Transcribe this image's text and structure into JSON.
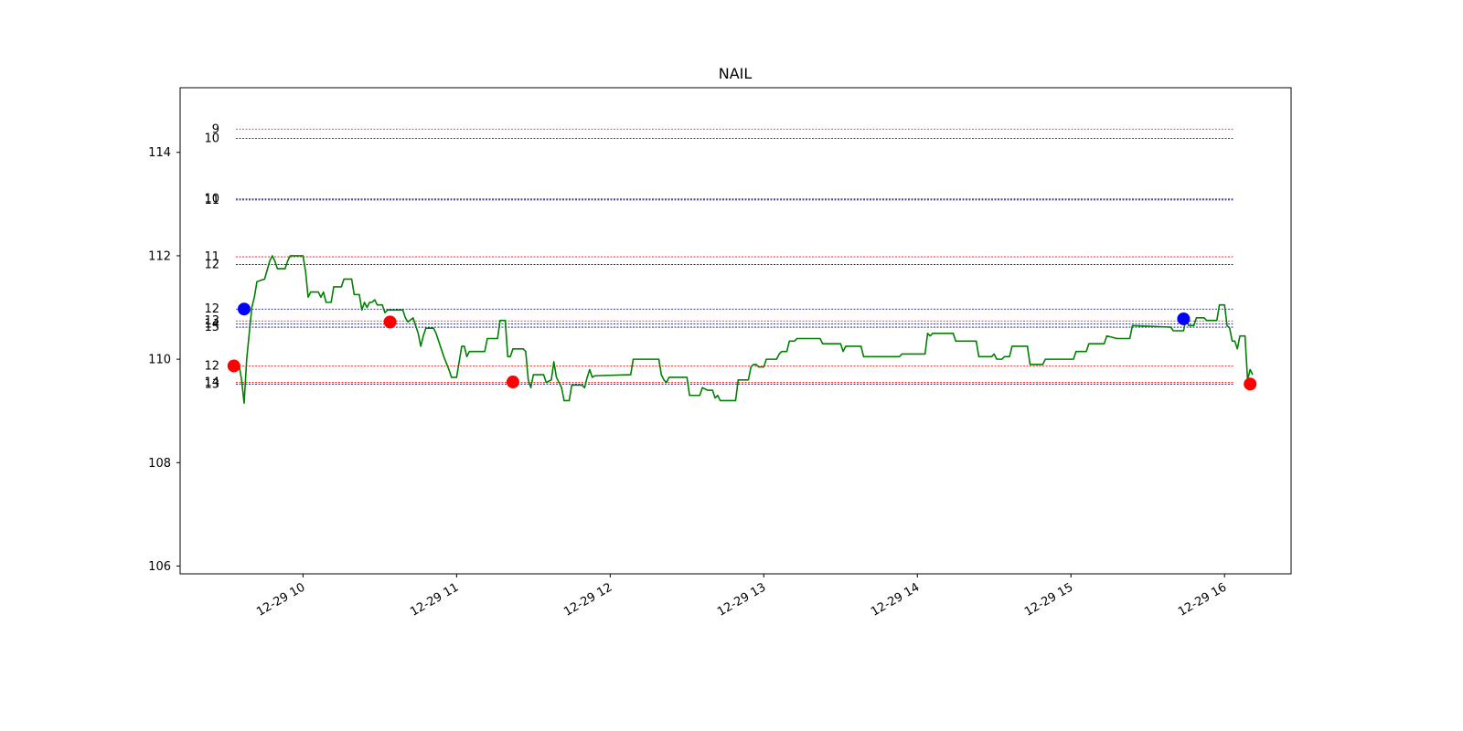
{
  "chart_data": {
    "type": "line",
    "title": "NAIL",
    "xlabel": "",
    "ylabel": "",
    "x_axis": {
      "type": "time",
      "date": "2024-12-29",
      "range": [
        "09:12",
        "16:26"
      ],
      "ticks": [
        {
          "time": "10:00",
          "label": "12-29 10"
        },
        {
          "time": "11:00",
          "label": "12-29 11"
        },
        {
          "time": "12:00",
          "label": "12-29 12"
        },
        {
          "time": "13:00",
          "label": "12-29 13"
        },
        {
          "time": "14:00",
          "label": "12-29 14"
        },
        {
          "time": "15:00",
          "label": "12-29 15"
        },
        {
          "time": "16:00",
          "label": "12-29 16"
        }
      ]
    },
    "y_axis": {
      "range": [
        105.85,
        115.25
      ],
      "ticks": [
        106,
        108,
        110,
        112,
        114
      ]
    },
    "grid": false,
    "series": [
      {
        "color": "#008000",
        "points": [
          [
            "09:35",
            109.9
          ],
          [
            "09:36",
            109.6
          ],
          [
            "09:37",
            109.15
          ],
          [
            "09:38",
            110.0
          ],
          [
            "09:40",
            111.0
          ],
          [
            "09:41",
            111.2
          ],
          [
            "09:42",
            111.5
          ],
          [
            "09:45",
            111.55
          ],
          [
            "09:47",
            111.9
          ],
          [
            "09:48",
            112.0
          ],
          [
            "09:49",
            111.9
          ],
          [
            "09:50",
            111.75
          ],
          [
            "09:53",
            111.75
          ],
          [
            "09:54",
            111.9
          ],
          [
            "09:55",
            112.0
          ],
          [
            "10:00",
            112.0
          ],
          [
            "10:01",
            111.7
          ],
          [
            "10:02",
            111.2
          ],
          [
            "10:03",
            111.3
          ],
          [
            "10:06",
            111.3
          ],
          [
            "10:07",
            111.2
          ],
          [
            "10:08",
            111.3
          ],
          [
            "10:09",
            111.1
          ],
          [
            "10:11",
            111.1
          ],
          [
            "10:12",
            111.4
          ],
          [
            "10:15",
            111.4
          ],
          [
            "10:16",
            111.55
          ],
          [
            "10:19",
            111.55
          ],
          [
            "10:20",
            111.25
          ],
          [
            "10:22",
            111.25
          ],
          [
            "10:23",
            110.95
          ],
          [
            "10:24",
            111.1
          ],
          [
            "10:25",
            111.0
          ],
          [
            "10:26",
            111.1
          ],
          [
            "10:27",
            111.1
          ],
          [
            "10:28",
            111.15
          ],
          [
            "10:29",
            111.05
          ],
          [
            "10:31",
            111.05
          ],
          [
            "10:32",
            110.9
          ],
          [
            "10:33",
            110.95
          ],
          [
            "10:35",
            110.95
          ],
          [
            "10:39",
            110.95
          ],
          [
            "10:40",
            110.8
          ],
          [
            "10:41",
            110.72
          ],
          [
            "10:43",
            110.8
          ],
          [
            "10:44",
            110.65
          ],
          [
            "10:45",
            110.5
          ],
          [
            "10:46",
            110.25
          ],
          [
            "10:47",
            110.45
          ],
          [
            "10:48",
            110.6
          ],
          [
            "10:51",
            110.6
          ],
          [
            "10:52",
            110.5
          ],
          [
            "10:53",
            110.35
          ],
          [
            "10:54",
            110.2
          ],
          [
            "10:55",
            110.05
          ],
          [
            "10:57",
            109.8
          ],
          [
            "10:58",
            109.65
          ],
          [
            "11:00",
            109.65
          ],
          [
            "11:01",
            109.95
          ],
          [
            "11:02",
            110.25
          ],
          [
            "11:03",
            110.25
          ],
          [
            "11:04",
            110.05
          ],
          [
            "11:05",
            110.15
          ],
          [
            "11:11",
            110.15
          ],
          [
            "11:12",
            110.4
          ],
          [
            "11:16",
            110.4
          ],
          [
            "11:17",
            110.75
          ],
          [
            "11:19",
            110.75
          ],
          [
            "11:20",
            110.05
          ],
          [
            "11:21",
            110.05
          ],
          [
            "11:22",
            110.2
          ],
          [
            "11:26",
            110.2
          ],
          [
            "11:27",
            110.15
          ],
          [
            "11:28",
            109.6
          ],
          [
            "11:29",
            109.45
          ],
          [
            "11:30",
            109.7
          ],
          [
            "11:34",
            109.7
          ],
          [
            "11:35",
            109.55
          ],
          [
            "11:37",
            109.6
          ],
          [
            "11:38",
            109.95
          ],
          [
            "11:39",
            109.65
          ],
          [
            "11:40",
            109.55
          ],
          [
            "11:41",
            109.45
          ],
          [
            "11:42",
            109.2
          ],
          [
            "11:44",
            109.2
          ],
          [
            "11:45",
            109.5
          ],
          [
            "11:49",
            109.5
          ],
          [
            "11:50",
            109.45
          ],
          [
            "11:51",
            109.65
          ],
          [
            "11:52",
            109.8
          ],
          [
            "11:53",
            109.65
          ],
          [
            "11:54",
            109.68
          ],
          [
            "12:08",
            109.7
          ],
          [
            "12:09",
            110.0
          ],
          [
            "12:19",
            110.0
          ],
          [
            "12:20",
            109.7
          ],
          [
            "12:21",
            109.6
          ],
          [
            "12:22",
            109.55
          ],
          [
            "12:23",
            109.65
          ],
          [
            "12:30",
            109.65
          ],
          [
            "12:31",
            109.3
          ],
          [
            "12:35",
            109.3
          ],
          [
            "12:36",
            109.45
          ],
          [
            "12:38",
            109.4
          ],
          [
            "12:40",
            109.4
          ],
          [
            "12:41",
            109.25
          ],
          [
            "12:42",
            109.3
          ],
          [
            "12:43",
            109.2
          ],
          [
            "12:49",
            109.2
          ],
          [
            "12:50",
            109.6
          ],
          [
            "12:54",
            109.6
          ],
          [
            "12:55",
            109.85
          ],
          [
            "12:56",
            109.9
          ],
          [
            "12:57",
            109.9
          ],
          [
            "12:58",
            109.85
          ],
          [
            "13:00",
            109.85
          ],
          [
            "13:01",
            110.0
          ],
          [
            "13:05",
            110.0
          ],
          [
            "13:06",
            110.1
          ],
          [
            "13:07",
            110.15
          ],
          [
            "13:09",
            110.15
          ],
          [
            "13:10",
            110.35
          ],
          [
            "13:12",
            110.35
          ],
          [
            "13:13",
            110.4
          ],
          [
            "13:15",
            110.4
          ],
          [
            "13:22",
            110.4
          ],
          [
            "13:23",
            110.3
          ],
          [
            "13:30",
            110.3
          ],
          [
            "13:31",
            110.15
          ],
          [
            "13:32",
            110.25
          ],
          [
            "13:38",
            110.25
          ],
          [
            "13:39",
            110.05
          ],
          [
            "13:53",
            110.05
          ],
          [
            "13:54",
            110.1
          ],
          [
            "14:03",
            110.1
          ],
          [
            "14:04",
            110.5
          ],
          [
            "14:05",
            110.45
          ],
          [
            "14:06",
            110.5
          ],
          [
            "14:14",
            110.5
          ],
          [
            "14:15",
            110.35
          ],
          [
            "14:23",
            110.35
          ],
          [
            "14:24",
            110.05
          ],
          [
            "14:29",
            110.05
          ],
          [
            "14:30",
            110.1
          ],
          [
            "14:31",
            110.0
          ],
          [
            "14:33",
            110.0
          ],
          [
            "14:34",
            110.05
          ],
          [
            "14:36",
            110.05
          ],
          [
            "14:37",
            110.25
          ],
          [
            "14:43",
            110.25
          ],
          [
            "14:44",
            109.9
          ],
          [
            "14:49",
            109.9
          ],
          [
            "14:50",
            110.0
          ],
          [
            "15:01",
            110.0
          ],
          [
            "15:02",
            110.15
          ],
          [
            "15:06",
            110.15
          ],
          [
            "15:07",
            110.3
          ],
          [
            "15:13",
            110.3
          ],
          [
            "15:14",
            110.45
          ],
          [
            "15:18",
            110.4
          ],
          [
            "15:23",
            110.4
          ],
          [
            "15:24",
            110.65
          ],
          [
            "15:39",
            110.62
          ],
          [
            "15:40",
            110.55
          ],
          [
            "15:44",
            110.55
          ],
          [
            "15:45",
            110.8
          ],
          [
            "15:46",
            110.65
          ],
          [
            "15:48",
            110.65
          ],
          [
            "15:49",
            110.8
          ],
          [
            "15:52",
            110.8
          ],
          [
            "15:53",
            110.75
          ],
          [
            "15:57",
            110.75
          ],
          [
            "15:58",
            111.05
          ],
          [
            "16:00",
            111.05
          ],
          [
            "16:01",
            110.65
          ],
          [
            "16:02",
            110.6
          ],
          [
            "16:03",
            110.35
          ],
          [
            "16:04",
            110.35
          ],
          [
            "16:05",
            110.2
          ],
          [
            "16:06",
            110.45
          ],
          [
            "16:08",
            110.45
          ],
          [
            "16:09",
            109.6
          ],
          [
            "16:10",
            109.8
          ],
          [
            "16:11",
            109.7
          ]
        ]
      }
    ],
    "markers": [
      {
        "time": "09:33",
        "value": 109.87,
        "color": "#ff0000"
      },
      {
        "time": "09:37",
        "value": 110.97,
        "color": "#0000ff"
      },
      {
        "time": "10:34",
        "value": 110.72,
        "color": "#ff0000"
      },
      {
        "time": "11:22",
        "value": 109.56,
        "color": "#ff0000"
      },
      {
        "time": "15:44",
        "value": 110.78,
        "color": "#0000ff"
      },
      {
        "time": "16:10",
        "value": 109.52,
        "color": "#ff0000"
      }
    ],
    "levels": [
      {
        "value": 114.45,
        "color": "#ff0000",
        "label": "9"
      },
      {
        "value": 114.27,
        "color": "#000080",
        "label": "10"
      },
      {
        "value": 113.1,
        "color": "#ff0000",
        "label": "10"
      },
      {
        "value": 113.08,
        "color": "#000080",
        "label": "11"
      },
      {
        "value": 111.98,
        "color": "#ff0000",
        "label": "11"
      },
      {
        "value": 111.83,
        "color": "#000080",
        "label": "12"
      },
      {
        "value": 110.97,
        "color": "#000080",
        "label": "12"
      },
      {
        "value": 110.74,
        "color": "#ff0000",
        "label": "13"
      },
      {
        "value": 110.68,
        "color": "#000080",
        "label": "14"
      },
      {
        "value": 110.62,
        "color": "#000080",
        "label": "15"
      },
      {
        "value": 109.87,
        "color": "#ff0000",
        "label": "12"
      },
      {
        "value": 109.55,
        "color": "#ff0000",
        "label": "14"
      },
      {
        "value": 109.52,
        "color": "#000080",
        "label": "13"
      }
    ]
  }
}
